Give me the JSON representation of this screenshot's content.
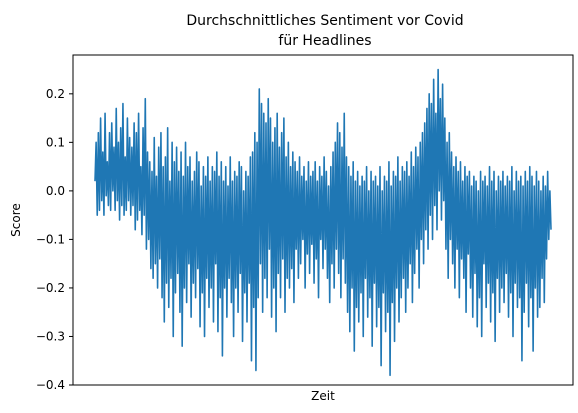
{
  "chart_data": {
    "type": "line",
    "title_line1": "Durchschnittliches Sentiment vor Covid",
    "title_line2": "für Headlines",
    "xlabel": "Zeit",
    "ylabel": "Score",
    "ylim": [
      -0.4,
      0.28
    ],
    "yticks": [
      -0.4,
      -0.3,
      -0.2,
      -0.1,
      0.0,
      0.1,
      0.2
    ],
    "ytick_labels": [
      "−0.4",
      "−0.3",
      "−0.2",
      "−0.1",
      "0.0",
      "0.1",
      "0.2"
    ],
    "grid": false,
    "x_tick_labels_visible": false,
    "series": [
      {
        "color": "#1f77b4",
        "values": [
          0.02,
          0.1,
          -0.05,
          0.12,
          -0.04,
          0.15,
          -0.02,
          0.08,
          -0.05,
          0.16,
          -0.01,
          0.06,
          -0.03,
          0.12,
          -0.04,
          0.14,
          0.0,
          0.09,
          -0.04,
          0.17,
          -0.02,
          0.1,
          -0.06,
          0.13,
          -0.03,
          0.18,
          -0.05,
          0.07,
          -0.04,
          0.15,
          -0.02,
          0.11,
          -0.05,
          0.09,
          -0.03,
          0.14,
          -0.08,
          0.12,
          -0.06,
          0.16,
          -0.04,
          0.05,
          -0.09,
          0.13,
          -0.05,
          0.19,
          -0.12,
          0.08,
          -0.1,
          0.06,
          -0.16,
          0.04,
          -0.18,
          0.11,
          -0.15,
          0.03,
          -0.2,
          0.09,
          -0.14,
          0.12,
          -0.22,
          0.05,
          -0.27,
          0.07,
          -0.19,
          0.13,
          -0.24,
          0.02,
          -0.18,
          0.1,
          -0.3,
          0.06,
          -0.21,
          0.09,
          -0.17,
          0.04,
          -0.25,
          0.08,
          -0.32,
          0.03,
          -0.2,
          0.1,
          -0.23,
          0.05,
          -0.15,
          0.07,
          -0.26,
          0.02,
          -0.19,
          0.04,
          -0.22,
          0.08,
          -0.16,
          0.06,
          -0.28,
          0.01,
          -0.21,
          0.05,
          -0.3,
          0.03,
          -0.18,
          0.07,
          -0.24,
          0.02,
          -0.2,
          0.05,
          -0.27,
          0.04,
          -0.15,
          0.08,
          -0.29,
          0.03,
          -0.22,
          0.06,
          -0.34,
          0.02,
          -0.2,
          0.05,
          -0.26,
          0.01,
          -0.18,
          0.07,
          -0.23,
          0.02,
          -0.3,
          0.04,
          -0.2,
          0.03,
          -0.25,
          0.06,
          -0.17,
          0.05,
          -0.31,
          0.0,
          -0.21,
          0.04,
          -0.27,
          0.03,
          -0.19,
          0.07,
          -0.35,
          0.08,
          -0.24,
          0.12,
          -0.37,
          0.1,
          -0.22,
          0.21,
          -0.15,
          0.18,
          -0.25,
          0.16,
          -0.18,
          0.14,
          -0.22,
          0.19,
          -0.12,
          0.15,
          -0.26,
          0.1,
          -0.2,
          0.13,
          -0.29,
          0.16,
          -0.17,
          0.09,
          -0.22,
          0.12,
          -0.14,
          0.15,
          -0.25,
          0.07,
          -0.18,
          0.1,
          -0.2,
          0.05,
          -0.16,
          0.08,
          -0.23,
          0.06,
          -0.12,
          0.04,
          -0.18,
          0.07,
          -0.15,
          0.03,
          -0.1,
          0.05,
          -0.2,
          0.02,
          -0.13,
          0.06,
          -0.17,
          0.03,
          -0.11,
          0.04,
          -0.19,
          0.06,
          -0.14,
          0.02,
          -0.22,
          0.05,
          -0.1,
          0.03,
          -0.16,
          0.07,
          -0.12,
          0.04,
          -0.18,
          0.01,
          -0.23,
          0.05,
          -0.15,
          0.08,
          -0.2,
          0.1,
          -0.12,
          0.14,
          -0.17,
          0.12,
          -0.22,
          0.09,
          -0.14,
          0.16,
          -0.19,
          0.07,
          -0.25,
          0.05,
          -0.29,
          0.03,
          -0.2,
          0.06,
          -0.33,
          0.02,
          -0.24,
          0.04,
          -0.27,
          0.01,
          -0.21,
          0.03,
          -0.3,
          0.02,
          -0.18,
          0.05,
          -0.26,
          0.0,
          -0.22,
          0.04,
          -0.32,
          0.02,
          -0.19,
          0.03,
          -0.28,
          0.01,
          -0.24,
          0.05,
          -0.36,
          0.0,
          -0.21,
          0.03,
          -0.29,
          0.02,
          -0.25,
          0.06,
          -0.38,
          0.01,
          -0.23,
          0.04,
          -0.31,
          0.03,
          -0.2,
          0.07,
          -0.27,
          0.02,
          -0.22,
          0.05,
          -0.18,
          0.04,
          -0.25,
          0.06,
          -0.2,
          0.03,
          -0.15,
          0.08,
          -0.23,
          0.05,
          -0.17,
          0.09,
          -0.12,
          0.07,
          -0.2,
          0.1,
          -0.1,
          0.12,
          -0.15,
          0.14,
          -0.08,
          0.17,
          -0.12,
          0.2,
          -0.05,
          0.18,
          -0.1,
          0.23,
          -0.03,
          0.16,
          -0.08,
          0.25,
          0.0,
          0.19,
          -0.06,
          0.22,
          -0.02,
          0.15,
          -0.12,
          0.1,
          -0.18,
          0.12,
          -0.1,
          0.08,
          -0.15,
          0.05,
          -0.2,
          0.07,
          -0.12,
          0.04,
          -0.22,
          0.06,
          -0.14,
          0.02,
          -0.18,
          0.05,
          -0.25,
          0.03,
          -0.13,
          0.04,
          -0.2,
          0.01,
          -0.26,
          0.03,
          -0.17,
          0.02,
          -0.28,
          0.0,
          -0.22,
          0.04,
          -0.3,
          0.02,
          -0.15,
          0.03,
          -0.24,
          0.01,
          -0.19,
          0.05,
          -0.27,
          0.02,
          -0.21,
          0.04,
          -0.31,
          0.0,
          -0.18,
          0.03,
          -0.25,
          0.02,
          -0.2,
          0.04,
          -0.23,
          0.01,
          -0.17,
          0.03,
          -0.26,
          0.02,
          -0.21,
          0.05,
          -0.3,
          0.0,
          -0.19,
          0.04,
          -0.24,
          0.02,
          -0.22,
          0.03,
          -0.35,
          0.01,
          -0.25,
          0.04,
          -0.19,
          0.02,
          -0.28,
          0.05,
          -0.22,
          0.03,
          -0.33,
          0.01,
          -0.2,
          0.04,
          -0.26,
          0.02,
          -0.24,
          0.0,
          -0.18,
          0.03,
          -0.23,
          0.01,
          -0.14,
          0.04,
          -0.1,
          0.0,
          -0.08
        ]
      }
    ]
  }
}
